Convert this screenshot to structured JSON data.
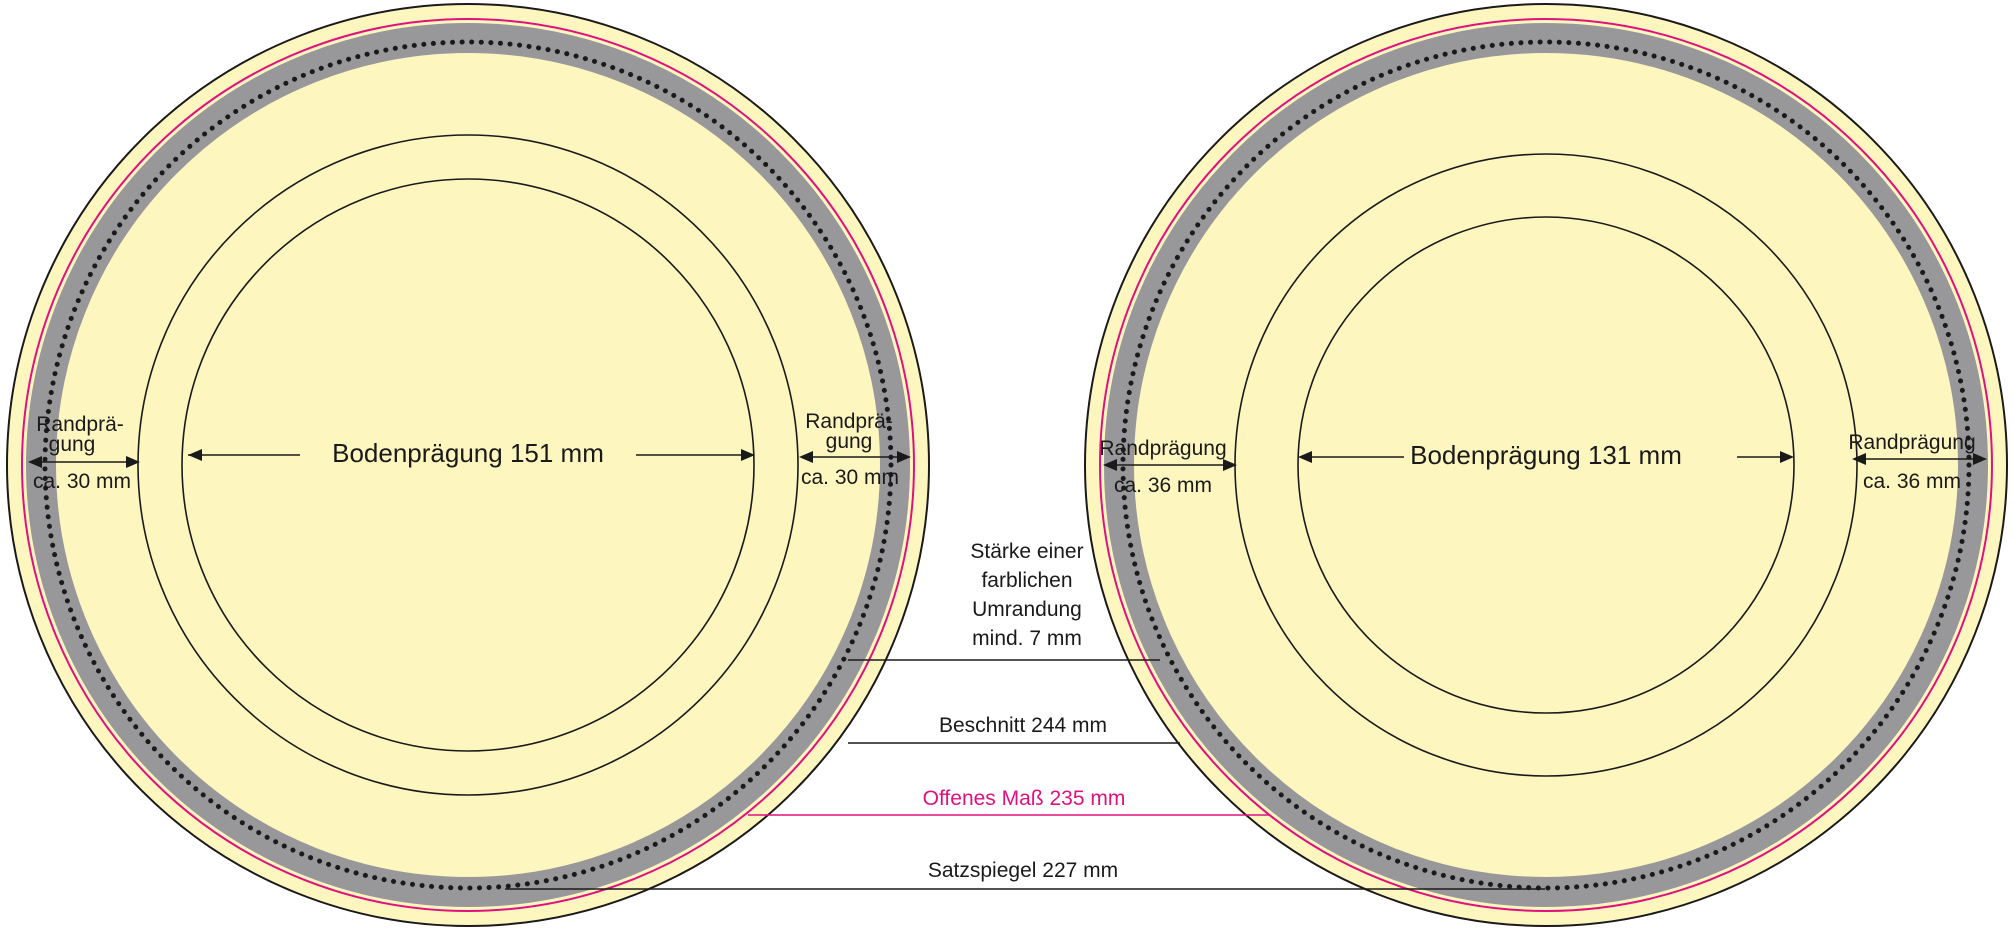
{
  "colors": {
    "paper": "#fdf6bf",
    "band": "#98989a",
    "outline": "#1a1a1a",
    "dots": "#1a1a1a",
    "magenta": "#e0117f",
    "text": "#1a1a1a"
  },
  "left_plate": {
    "floor_label": "Bodenprägung 151 mm",
    "rim_left_label_line1": "Randprä-",
    "rim_left_label_line2": "gung",
    "rim_left_size": "ca. 30 mm",
    "rim_right_label_line1": "Randprä-",
    "rim_right_label_line2": "gung",
    "rim_right_size": "ca. 30 mm"
  },
  "right_plate": {
    "floor_label": "Bodenprägung 131 mm",
    "rim_left_label": "Randprägung",
    "rim_left_size": "ca. 36 mm",
    "rim_right_label": "Randprägung",
    "rim_right_size": "ca. 36 mm"
  },
  "annotations": {
    "border_strength_line1": "Stärke einer",
    "border_strength_line2": "farblichen",
    "border_strength_line3": "Umrandung",
    "border_strength_line4": "mind. 7 mm",
    "bleed": "Beschnitt 244 mm",
    "open_size": "Offenes Maß 235 mm",
    "type_area": "Satzspiegel 227 mm"
  }
}
